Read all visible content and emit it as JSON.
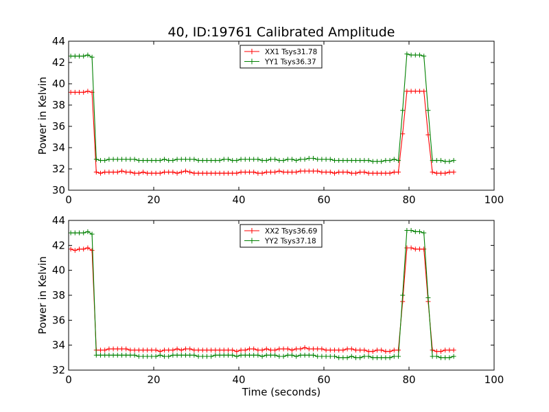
{
  "figure": {
    "title": "40, ID:19761 Calibrated Amplitude"
  },
  "chart_data": [
    {
      "type": "line",
      "title": "40, ID:19761 Calibrated Amplitude",
      "xlabel": "",
      "ylabel": "Power in Kelvin",
      "xlim": [
        0,
        100
      ],
      "ylim": [
        30,
        44
      ],
      "xticks": [
        "0",
        "20",
        "40",
        "60",
        "80",
        "100"
      ],
      "yticks": [
        "30",
        "32",
        "34",
        "36",
        "38",
        "40",
        "42",
        "44"
      ],
      "grid": false,
      "legend_position": "top-center",
      "series": [
        {
          "name": "XX1 Tsys31.78",
          "color": "#ff0000",
          "x": [
            0.5,
            1.5,
            2.5,
            3.5,
            4.5,
            5.5,
            6.5,
            7.5,
            8.5,
            9.5,
            10.5,
            11.5,
            12.5,
            13.5,
            14.5,
            15.5,
            16.5,
            17.5,
            18.5,
            19.5,
            20.5,
            21.5,
            22.5,
            23.5,
            24.5,
            25.5,
            26.5,
            27.5,
            28.5,
            29.5,
            30.5,
            31.5,
            32.5,
            33.5,
            34.5,
            35.5,
            36.5,
            37.5,
            38.5,
            39.5,
            40.5,
            41.5,
            42.5,
            43.5,
            44.5,
            45.5,
            46.5,
            47.5,
            48.5,
            49.5,
            50.5,
            51.5,
            52.5,
            53.5,
            54.5,
            55.5,
            56.5,
            57.5,
            58.5,
            59.5,
            60.5,
            61.5,
            62.5,
            63.5,
            64.5,
            65.5,
            66.5,
            67.5,
            68.5,
            69.5,
            70.5,
            71.5,
            72.5,
            73.5,
            74.5,
            75.5,
            76.5,
            77.5,
            78.5,
            79.5,
            80.5,
            81.5,
            82.5,
            83.5,
            84.5,
            85.5,
            86.5,
            87.5,
            88.5,
            89.5,
            90.5
          ],
          "y": [
            39.2,
            39.2,
            39.2,
            39.2,
            39.3,
            39.2,
            31.7,
            31.6,
            31.7,
            31.7,
            31.7,
            31.7,
            31.8,
            31.7,
            31.7,
            31.6,
            31.6,
            31.7,
            31.6,
            31.6,
            31.6,
            31.6,
            31.7,
            31.7,
            31.7,
            31.6,
            31.7,
            31.8,
            31.7,
            31.6,
            31.6,
            31.6,
            31.6,
            31.6,
            31.6,
            31.6,
            31.6,
            31.6,
            31.6,
            31.6,
            31.7,
            31.7,
            31.7,
            31.7,
            31.6,
            31.6,
            31.7,
            31.7,
            31.7,
            31.8,
            31.7,
            31.7,
            31.7,
            31.7,
            31.8,
            31.8,
            31.8,
            31.8,
            31.8,
            31.7,
            31.7,
            31.7,
            31.6,
            31.7,
            31.7,
            31.7,
            31.6,
            31.6,
            31.7,
            31.7,
            31.6,
            31.6,
            31.6,
            31.6,
            31.6,
            31.6,
            31.7,
            31.7,
            35.3,
            39.3,
            39.3,
            39.3,
            39.3,
            39.3,
            35.2,
            31.7,
            31.6,
            31.6,
            31.6,
            31.7,
            31.7
          ]
        },
        {
          "name": "YY1 Tsys36.37",
          "color": "#008000",
          "x": [
            0.5,
            1.5,
            2.5,
            3.5,
            4.5,
            5.5,
            6.5,
            7.5,
            8.5,
            9.5,
            10.5,
            11.5,
            12.5,
            13.5,
            14.5,
            15.5,
            16.5,
            17.5,
            18.5,
            19.5,
            20.5,
            21.5,
            22.5,
            23.5,
            24.5,
            25.5,
            26.5,
            27.5,
            28.5,
            29.5,
            30.5,
            31.5,
            32.5,
            33.5,
            34.5,
            35.5,
            36.5,
            37.5,
            38.5,
            39.5,
            40.5,
            41.5,
            42.5,
            43.5,
            44.5,
            45.5,
            46.5,
            47.5,
            48.5,
            49.5,
            50.5,
            51.5,
            52.5,
            53.5,
            54.5,
            55.5,
            56.5,
            57.5,
            58.5,
            59.5,
            60.5,
            61.5,
            62.5,
            63.5,
            64.5,
            65.5,
            66.5,
            67.5,
            68.5,
            69.5,
            70.5,
            71.5,
            72.5,
            73.5,
            74.5,
            75.5,
            76.5,
            77.5,
            78.5,
            79.5,
            80.5,
            81.5,
            82.5,
            83.5,
            84.5,
            85.5,
            86.5,
            87.5,
            88.5,
            89.5,
            90.5
          ],
          "y": [
            42.6,
            42.6,
            42.6,
            42.6,
            42.7,
            42.5,
            32.9,
            32.8,
            32.8,
            32.9,
            32.9,
            32.9,
            32.9,
            32.9,
            32.9,
            32.9,
            32.8,
            32.8,
            32.8,
            32.8,
            32.8,
            32.8,
            32.9,
            32.8,
            32.8,
            32.9,
            32.9,
            32.9,
            32.9,
            32.9,
            32.8,
            32.8,
            32.8,
            32.8,
            32.8,
            32.8,
            32.9,
            32.9,
            32.8,
            32.8,
            32.9,
            32.9,
            32.9,
            32.9,
            32.9,
            32.8,
            32.8,
            32.9,
            32.9,
            32.8,
            32.8,
            32.9,
            32.9,
            32.8,
            32.9,
            32.9,
            33.0,
            33.0,
            32.9,
            32.9,
            32.9,
            32.9,
            32.8,
            32.8,
            32.8,
            32.8,
            32.8,
            32.8,
            32.8,
            32.8,
            32.8,
            32.7,
            32.7,
            32.7,
            32.8,
            32.8,
            32.9,
            32.8,
            37.5,
            42.8,
            42.7,
            42.7,
            42.7,
            42.6,
            37.5,
            32.8,
            32.8,
            32.8,
            32.7,
            32.7,
            32.8
          ]
        }
      ]
    },
    {
      "type": "line",
      "title": "",
      "xlabel": "Time (seconds)",
      "ylabel": "Power in Kelvin",
      "xlim": [
        0,
        100
      ],
      "ylim": [
        32,
        44
      ],
      "xticks": [
        "0",
        "20",
        "40",
        "60",
        "80",
        "100"
      ],
      "yticks": [
        "32",
        "34",
        "36",
        "38",
        "40",
        "42",
        "44"
      ],
      "grid": false,
      "legend_position": "top-center",
      "series": [
        {
          "name": "XX2 Tsys36.69",
          "color": "#ff0000",
          "x": [
            0.5,
            1.5,
            2.5,
            3.5,
            4.5,
            5.5,
            6.5,
            7.5,
            8.5,
            9.5,
            10.5,
            11.5,
            12.5,
            13.5,
            14.5,
            15.5,
            16.5,
            17.5,
            18.5,
            19.5,
            20.5,
            21.5,
            22.5,
            23.5,
            24.5,
            25.5,
            26.5,
            27.5,
            28.5,
            29.5,
            30.5,
            31.5,
            32.5,
            33.5,
            34.5,
            35.5,
            36.5,
            37.5,
            38.5,
            39.5,
            40.5,
            41.5,
            42.5,
            43.5,
            44.5,
            45.5,
            46.5,
            47.5,
            48.5,
            49.5,
            50.5,
            51.5,
            52.5,
            53.5,
            54.5,
            55.5,
            56.5,
            57.5,
            58.5,
            59.5,
            60.5,
            61.5,
            62.5,
            63.5,
            64.5,
            65.5,
            66.5,
            67.5,
            68.5,
            69.5,
            70.5,
            71.5,
            72.5,
            73.5,
            74.5,
            75.5,
            76.5,
            77.5,
            78.5,
            79.5,
            80.5,
            81.5,
            82.5,
            83.5,
            84.5,
            85.5,
            86.5,
            87.5,
            88.5,
            89.5,
            90.5
          ],
          "y": [
            41.7,
            41.6,
            41.7,
            41.7,
            41.8,
            41.6,
            33.6,
            33.6,
            33.6,
            33.7,
            33.7,
            33.7,
            33.7,
            33.7,
            33.6,
            33.6,
            33.6,
            33.6,
            33.6,
            33.6,
            33.6,
            33.5,
            33.6,
            33.6,
            33.6,
            33.7,
            33.6,
            33.7,
            33.7,
            33.6,
            33.6,
            33.6,
            33.6,
            33.6,
            33.6,
            33.6,
            33.6,
            33.6,
            33.6,
            33.5,
            33.6,
            33.6,
            33.7,
            33.7,
            33.6,
            33.6,
            33.7,
            33.6,
            33.6,
            33.7,
            33.7,
            33.7,
            33.6,
            33.7,
            33.7,
            33.8,
            33.7,
            33.7,
            33.7,
            33.7,
            33.6,
            33.6,
            33.6,
            33.6,
            33.6,
            33.7,
            33.7,
            33.6,
            33.6,
            33.6,
            33.5,
            33.5,
            33.6,
            33.6,
            33.5,
            33.5,
            33.6,
            33.6,
            37.5,
            41.8,
            41.8,
            41.7,
            41.7,
            41.7,
            37.5,
            33.6,
            33.5,
            33.5,
            33.6,
            33.6,
            33.6
          ]
        },
        {
          "name": "YY2 Tsys37.18",
          "color": "#008000",
          "x": [
            0.5,
            1.5,
            2.5,
            3.5,
            4.5,
            5.5,
            6.5,
            7.5,
            8.5,
            9.5,
            10.5,
            11.5,
            12.5,
            13.5,
            14.5,
            15.5,
            16.5,
            17.5,
            18.5,
            19.5,
            20.5,
            21.5,
            22.5,
            23.5,
            24.5,
            25.5,
            26.5,
            27.5,
            28.5,
            29.5,
            30.5,
            31.5,
            32.5,
            33.5,
            34.5,
            35.5,
            36.5,
            37.5,
            38.5,
            39.5,
            40.5,
            41.5,
            42.5,
            43.5,
            44.5,
            45.5,
            46.5,
            47.5,
            48.5,
            49.5,
            50.5,
            51.5,
            52.5,
            53.5,
            54.5,
            55.5,
            56.5,
            57.5,
            58.5,
            59.5,
            60.5,
            61.5,
            62.5,
            63.5,
            64.5,
            65.5,
            66.5,
            67.5,
            68.5,
            69.5,
            70.5,
            71.5,
            72.5,
            73.5,
            74.5,
            75.5,
            76.5,
            77.5,
            78.5,
            79.5,
            80.5,
            81.5,
            82.5,
            83.5,
            84.5,
            85.5,
            86.5,
            87.5,
            88.5,
            89.5,
            90.5
          ],
          "y": [
            43.0,
            43.0,
            43.0,
            43.0,
            43.1,
            42.9,
            33.2,
            33.2,
            33.2,
            33.2,
            33.2,
            33.2,
            33.2,
            33.2,
            33.2,
            33.2,
            33.1,
            33.1,
            33.1,
            33.1,
            33.1,
            33.2,
            33.1,
            33.1,
            33.2,
            33.2,
            33.2,
            33.2,
            33.2,
            33.2,
            33.1,
            33.1,
            33.1,
            33.1,
            33.2,
            33.2,
            33.2,
            33.2,
            33.2,
            33.1,
            33.2,
            33.2,
            33.2,
            33.2,
            33.2,
            33.1,
            33.2,
            33.2,
            33.2,
            33.1,
            33.1,
            33.2,
            33.2,
            33.1,
            33.2,
            33.2,
            33.2,
            33.2,
            33.1,
            33.1,
            33.1,
            33.1,
            33.1,
            33.0,
            33.0,
            33.0,
            33.1,
            33.0,
            33.0,
            33.1,
            33.1,
            33.0,
            33.0,
            33.0,
            33.0,
            33.0,
            33.1,
            33.1,
            38.0,
            43.2,
            43.2,
            43.1,
            43.1,
            43.0,
            37.8,
            33.1,
            33.1,
            33.0,
            33.0,
            33.0,
            33.1
          ]
        }
      ]
    }
  ]
}
